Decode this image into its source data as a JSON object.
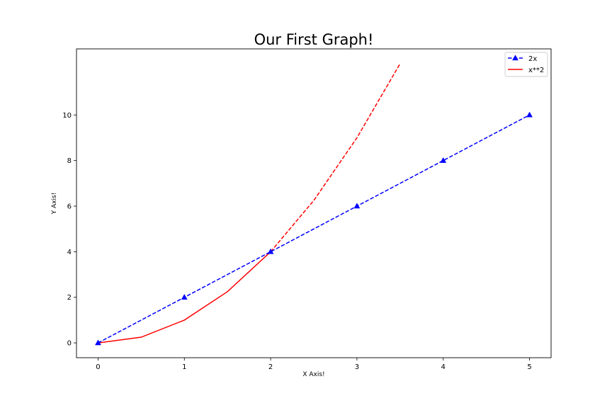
{
  "chart_data": {
    "type": "line",
    "title": "Our First Graph!",
    "xlabel": "X Axis!",
    "ylabel": "Y Axis!",
    "xlim": [
      -0.25,
      5.25
    ],
    "ylim": [
      -0.65,
      12.9
    ],
    "xticks": [
      0,
      1,
      2,
      3,
      4,
      5
    ],
    "yticks": [
      0,
      2,
      4,
      6,
      8,
      10
    ],
    "grid": false,
    "legend_position": "top-right",
    "series": [
      {
        "name": "2x",
        "color": "#0000ff",
        "line_style": "dashed",
        "marker": "triangle-up",
        "x": [
          0,
          1,
          2,
          3,
          4,
          5
        ],
        "y": [
          0,
          2,
          4,
          6,
          8,
          10
        ]
      },
      {
        "name": "x**2",
        "color": "#ff0000",
        "line_style": "solid-then-dashed",
        "marker": "none",
        "solid_segment": {
          "x": [
            0,
            0.5,
            1,
            1.5,
            2
          ],
          "y": [
            0,
            0.25,
            1,
            2.25,
            4
          ]
        },
        "dashed_segment": {
          "x": [
            2,
            2.5,
            3,
            3.5
          ],
          "y": [
            4,
            6.25,
            9,
            12.25
          ]
        }
      }
    ]
  }
}
